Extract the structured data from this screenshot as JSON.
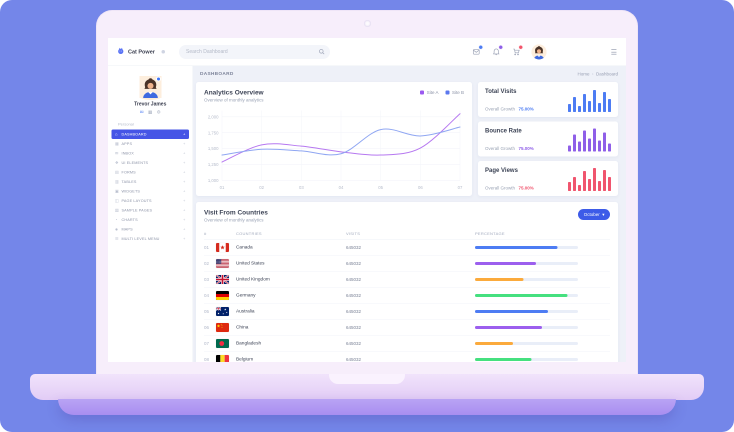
{
  "topbar": {
    "logo_text": "Cat Power",
    "search_placeholder": "Search Dashboard",
    "icons": [
      {
        "name": "mail",
        "badge_color": "#4d7cf3"
      },
      {
        "name": "bell",
        "badge_color": "#8f5fe8"
      },
      {
        "name": "cart",
        "badge_color": "#f3556b"
      }
    ]
  },
  "subheader": {
    "title": "DASHBOARD",
    "breadcrumb_home": "Home",
    "breadcrumb_current": "Dashboard"
  },
  "sidebar": {
    "user_name": "Trevor James",
    "profile_icons": [
      "mail",
      "calendar",
      "settings"
    ],
    "section_label": "Personal",
    "items": [
      {
        "label": "DASHBOARD",
        "icon": "home",
        "active": true
      },
      {
        "label": "APPS",
        "icon": "apps"
      },
      {
        "label": "INBOX",
        "icon": "inbox"
      },
      {
        "label": "UI ELEMENTS",
        "icon": "ui"
      },
      {
        "label": "FORMS",
        "icon": "forms"
      },
      {
        "label": "TABLES",
        "icon": "tables"
      },
      {
        "label": "WIDGETS",
        "icon": "widgets"
      },
      {
        "label": "PAGE LAYOUTS",
        "icon": "layouts"
      },
      {
        "label": "SAMPLE PAGES",
        "icon": "pages"
      },
      {
        "label": "CHARTS",
        "icon": "charts"
      },
      {
        "label": "MAPS",
        "icon": "maps"
      },
      {
        "label": "MULTI LEVEL MENU",
        "icon": "menu"
      }
    ]
  },
  "analytics": {
    "title": "Analytics Overview",
    "subtitle": "Overview of monthly analytics",
    "legend": [
      {
        "label": "Site A",
        "color": "#9b59f0"
      },
      {
        "label": "Site B",
        "color": "#5b78ee"
      }
    ]
  },
  "chart_data": {
    "type": "line",
    "title": "Analytics Overview",
    "subtitle": "Overview of monthly analytics",
    "x": [
      "01",
      "02",
      "03",
      "04",
      "05",
      "06",
      "07"
    ],
    "series": [
      {
        "name": "Site A",
        "color": "#b678f0",
        "values": [
          1290,
          1560,
          1540,
          1450,
          1400,
          1510,
          2050
        ]
      },
      {
        "name": "Site B",
        "color": "#8fa6f2",
        "values": [
          1400,
          1490,
          1465,
          1420,
          1800,
          1700,
          1840
        ]
      }
    ],
    "ylim": [
      1000,
      2100
    ],
    "yticks": [
      1000,
      1250,
      1500,
      1750,
      2000
    ],
    "ytick_labels": [
      "1,000",
      "1,250",
      "1,500",
      "1,750",
      "2,000"
    ],
    "grid": true,
    "legend_position": "top-right"
  },
  "stats_cards": [
    {
      "title": "Total Visits",
      "label": "Overall Growth",
      "value": "75.00%",
      "color": "#4d7cf3",
      "bars": [
        16,
        30,
        12,
        36,
        22,
        44,
        18,
        40,
        26
      ]
    },
    {
      "title": "Bounce Rate",
      "label": "Overall Growth",
      "value": "75.00%",
      "color": "#8f5fe8",
      "bars": [
        12,
        34,
        20,
        42,
        26,
        46,
        22,
        38,
        16
      ]
    },
    {
      "title": "Page Views",
      "label": "Overall Growth",
      "value": "75.00%",
      "color": "#f0556e",
      "bars": [
        18,
        28,
        12,
        40,
        24,
        46,
        20,
        42,
        28
      ]
    }
  ],
  "countries": {
    "title": "Visit From Countries",
    "subtitle": "Overview of monthly analytics",
    "button_label": "October",
    "columns": [
      "#",
      "COUNTRIES",
      "VISITS",
      "PERCENTAGE"
    ],
    "rows": [
      {
        "index": "01",
        "flag": "ca",
        "country": "Canada",
        "visits": "645032",
        "pct": 80,
        "color": "#4d7cf3"
      },
      {
        "index": "02",
        "flag": "us",
        "country": "United States",
        "visits": "645032",
        "pct": 59,
        "color": "#9c5fee"
      },
      {
        "index": "03",
        "flag": "gb",
        "country": "United Kingdom",
        "visits": "645032",
        "pct": 47,
        "color": "#fbaa3c"
      },
      {
        "index": "04",
        "flag": "de",
        "country": "Germany",
        "visits": "645032",
        "pct": 90,
        "color": "#45e07f"
      },
      {
        "index": "05",
        "flag": "au",
        "country": "Australia",
        "visits": "645032",
        "pct": 71,
        "color": "#4d7cf3"
      },
      {
        "index": "06",
        "flag": "cn",
        "country": "China",
        "visits": "645032",
        "pct": 65,
        "color": "#9c5fee"
      },
      {
        "index": "07",
        "flag": "bd",
        "country": "Bangladesh",
        "visits": "645032",
        "pct": 37,
        "color": "#fbaa3c"
      },
      {
        "index": "08",
        "flag": "be",
        "country": "Belgium",
        "visits": "645032",
        "pct": 55,
        "color": "#45e07f"
      }
    ]
  }
}
